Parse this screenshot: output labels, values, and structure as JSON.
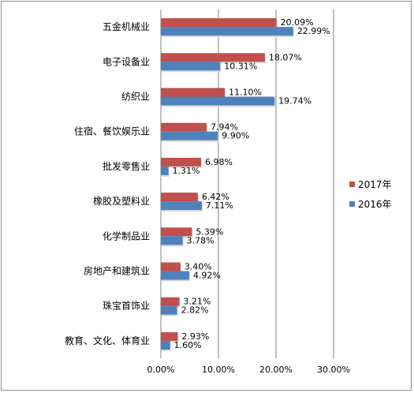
{
  "chart_data": {
    "type": "bar",
    "orientation": "horizontal",
    "categories": [
      "五金机械业",
      "电子设备业",
      "纺织业",
      "住宿、餐饮娱乐业",
      "批发零售业",
      "橡胶及塑料业",
      "化学制品业",
      "房地产和建筑业",
      "珠宝首饰业",
      "教育、文化、体育业"
    ],
    "series": [
      {
        "name": "2017年",
        "color": "#c0504d",
        "values": [
          20.09,
          18.07,
          11.1,
          7.94,
          6.98,
          6.42,
          5.39,
          3.4,
          3.21,
          2.93
        ],
        "labels": [
          "20.09%",
          "18.07%",
          "11.10%",
          "7.94%",
          "6.98%",
          "6.42%",
          "5.39%",
          "3.40%",
          "3.21%",
          "2.93%"
        ]
      },
      {
        "name": "2016年",
        "color": "#4f81bd",
        "values": [
          22.99,
          10.31,
          19.74,
          9.9,
          1.31,
          7.11,
          3.78,
          4.92,
          2.82,
          1.6
        ],
        "labels": [
          "22.99%",
          "10.31%",
          "19.74%",
          "9.90%",
          "1.31%",
          "7.11%",
          "3.78%",
          "4.92%",
          "2.82%",
          "1.60%"
        ]
      }
    ],
    "xlim": [
      0,
      30
    ],
    "xticks": [
      0,
      10,
      20,
      30
    ],
    "xtick_labels": [
      "0.00%",
      "10.00%",
      "20.00%",
      "30.00%"
    ],
    "grid": "vertical",
    "legend": "right"
  }
}
